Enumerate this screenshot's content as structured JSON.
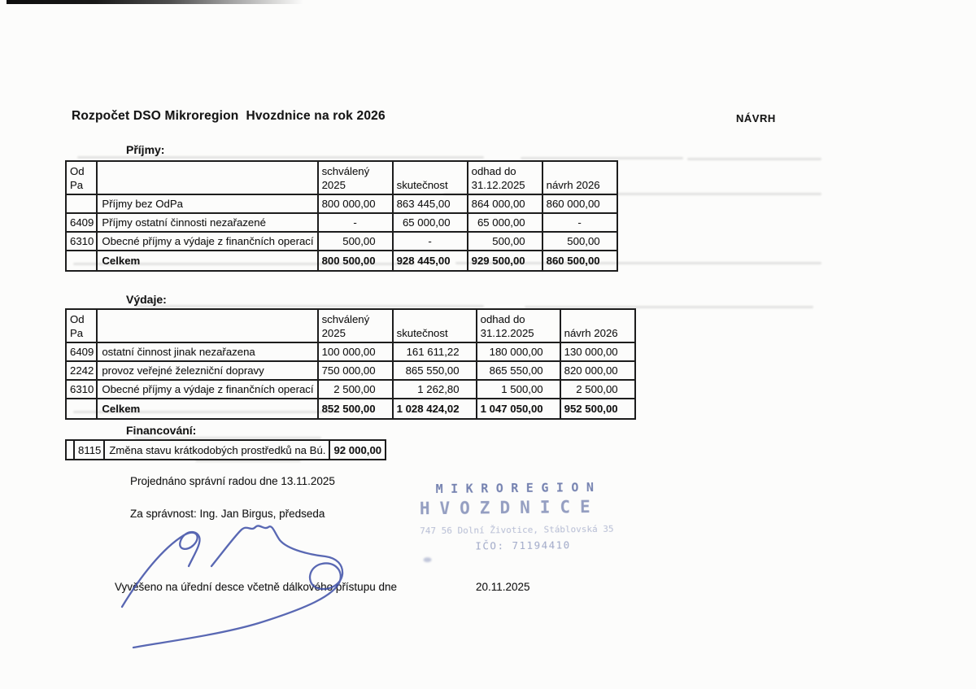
{
  "page": {
    "title": "Rozpočet DSO Mikroregion  Hvozdnice na rok 2026",
    "draft_label": "NÁVRH"
  },
  "sections": {
    "prijmy_heading": "Příjmy:",
    "vydaje_heading": "Výdaje:",
    "financovani_heading": "Financování:"
  },
  "tables": {
    "prijmy": {
      "headers": [
        "Od Pa",
        "",
        "schválený 2025",
        "skutečnost",
        "odhad do\n31.12.2025",
        "návrh 2026"
      ],
      "rows": [
        {
          "code": "",
          "desc": "Příjmy bez OdPa",
          "values": [
            "800 000,00",
            "863 445,00",
            "864 000,00",
            "860 000,00"
          ],
          "total": false
        },
        {
          "code": "6409",
          "desc": "Příjmy ostatní činnosti nezařazené",
          "values": [
            "-",
            "65 000,00",
            "65 000,00",
            "-"
          ],
          "total": false
        },
        {
          "code": "6310",
          "desc": "Obecné příjmy a výdaje z finančních operací",
          "values": [
            "500,00",
            "-",
            "500,00",
            "500,00"
          ],
          "total": false
        },
        {
          "code": "",
          "desc": "Celkem",
          "values": [
            "800 500,00",
            "928 445,00",
            "929 500,00",
            "860 500,00"
          ],
          "total": true
        }
      ]
    },
    "vydaje": {
      "headers": [
        "Od Pa",
        "",
        "schválený 2025",
        "skutečnost",
        "odhad do\n31.12.2025",
        "návrh 2026"
      ],
      "rows": [
        {
          "code": "6409",
          "desc": "ostatní činnost jinak nezařazena",
          "values": [
            "100 000,00",
            "161 611,22",
            "180 000,00",
            "130 000,00"
          ],
          "total": false
        },
        {
          "code": "2242",
          "desc": "provoz veřejné železniční dopravy",
          "values": [
            "750 000,00",
            "865 550,00",
            "865 550,00",
            "820 000,00"
          ],
          "total": false
        },
        {
          "code": "6310",
          "desc": "Obecné příjmy a výdaje z finančních operací",
          "values": [
            "2 500,00",
            "1 262,80",
            "1 500,00",
            "2 500,00"
          ],
          "total": false
        },
        {
          "code": "",
          "desc": "Celkem",
          "values": [
            "852 500,00",
            "1 028 424,02",
            "1 047 050,00",
            "952 500,00"
          ],
          "total": true
        }
      ]
    },
    "financovani": {
      "rows": [
        {
          "code": "8115",
          "desc": "Změna stavu krátkodobých prostředků na Bú.",
          "value": "92 000,00"
        }
      ]
    }
  },
  "footer": {
    "approved_line": "Projednáno správní radou dne 13.11.2025",
    "signed_line": "Za správnost: Ing. Jan Birgus, předseda",
    "posted_line": "Vyvěšeno na úřední desce včetně dálkového přístupu dne",
    "posted_date": "20.11.2025"
  },
  "stamp": {
    "line1": "MIKROREGION",
    "line2": "HVOZDNICE",
    "line3": "747 56 Dolní Životice, Stáblovská 35",
    "line4": "IČO: 71194410",
    "ink_color": "#54649e"
  },
  "signature": {
    "ink_color": "#3c4da6"
  }
}
